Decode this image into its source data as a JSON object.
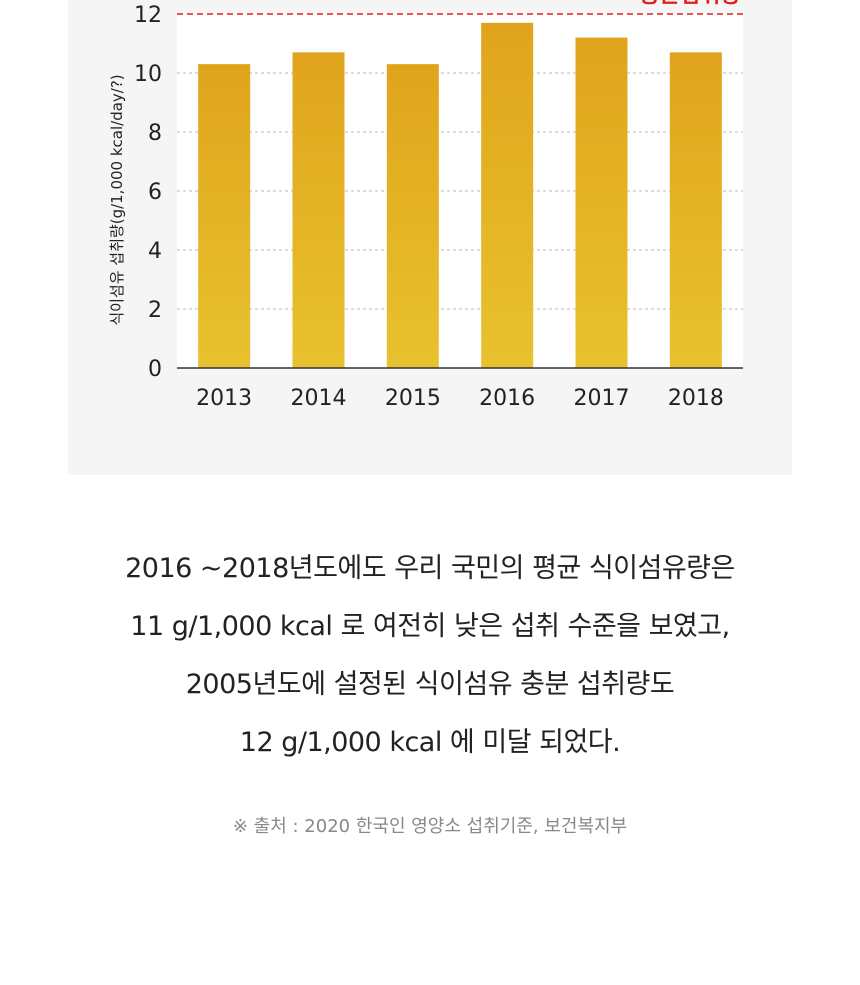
{
  "chart_data": {
    "type": "bar",
    "categories": [
      "2013",
      "2014",
      "2015",
      "2016",
      "2017",
      "2018"
    ],
    "values": [
      10.3,
      10.7,
      10.3,
      11.7,
      11.2,
      10.7
    ],
    "ylabel": "식이섬유 섭취량(g/1,000 kcal/day/?)",
    "xlabel": "",
    "ylim": [
      0,
      12
    ],
    "yticks": [
      0,
      2,
      4,
      6,
      8,
      10,
      12
    ],
    "reference_line": {
      "value": 12,
      "label": "충분섭취량",
      "color": "#e02020"
    },
    "grid": true,
    "bar_color_top": "#e0a41c",
    "bar_color_bottom": "#e8c22e"
  },
  "description": [
    "2016 ~2018년도에도 우리 국민의 평균 식이섬유량은",
    "11 g/1,000 kcal 로 여전히 낮은 섭취 수준을 보였고,",
    "2005년도에 설정된 식이섬유 충분 섭취량도",
    "12 g/1,000 kcal 에 미달 되었다."
  ],
  "source": "※ 출처 : 2020 한국인 영양소 섭취기준, 보건복지부"
}
